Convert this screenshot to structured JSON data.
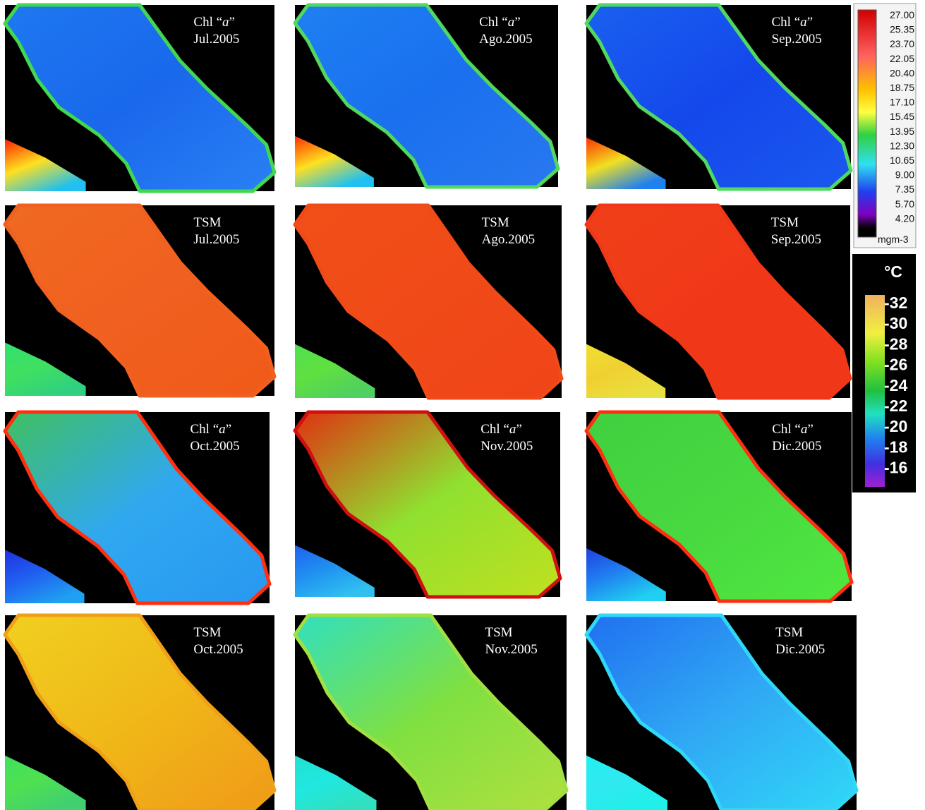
{
  "panels": [
    {
      "title": [
        "Chl “",
        "a",
        "”"
      ],
      "date": "Jul.2005"
    },
    {
      "title": [
        "Chl “",
        "a",
        "”"
      ],
      "date": "Ago.2005"
    },
    {
      "title": [
        "Chl “",
        "a",
        "”"
      ],
      "date": "Sep.2005"
    },
    {
      "title": [
        "TSM"
      ],
      "date": "Jul.2005"
    },
    {
      "title": [
        "TSM"
      ],
      "date": "Ago.2005"
    },
    {
      "title": [
        "TSM"
      ],
      "date": "Sep.2005"
    },
    {
      "title": [
        "Chl “",
        "a",
        "”"
      ],
      "date": "Oct.2005"
    },
    {
      "title": [
        "Chl “",
        "a",
        "”"
      ],
      "date": "Nov.2005"
    },
    {
      "title": [
        "Chl “",
        "a",
        "”"
      ],
      "date": "Dic.2005"
    },
    {
      "title": [
        "TSM"
      ],
      "date": "Oct.2005"
    },
    {
      "title": [
        "TSM"
      ],
      "date": "Nov.2005"
    },
    {
      "title": [
        "TSM"
      ],
      "date": "Dic.2005"
    }
  ],
  "chl_scale": {
    "labels": [
      "27.00",
      "25.35",
      "23.70",
      "22.05",
      "20.40",
      "18.75",
      "17.10",
      "15.45",
      "13.95",
      "12.30",
      "10.65",
      "9.00",
      "7.35",
      "5.70",
      "4.20"
    ],
    "unit": "mgm-3"
  },
  "sst_scale": {
    "unit": "°C",
    "labels": [
      "-32",
      "-30",
      "-28",
      "-26",
      "-24",
      "-22",
      "-20",
      "-18",
      "-16"
    ]
  }
}
